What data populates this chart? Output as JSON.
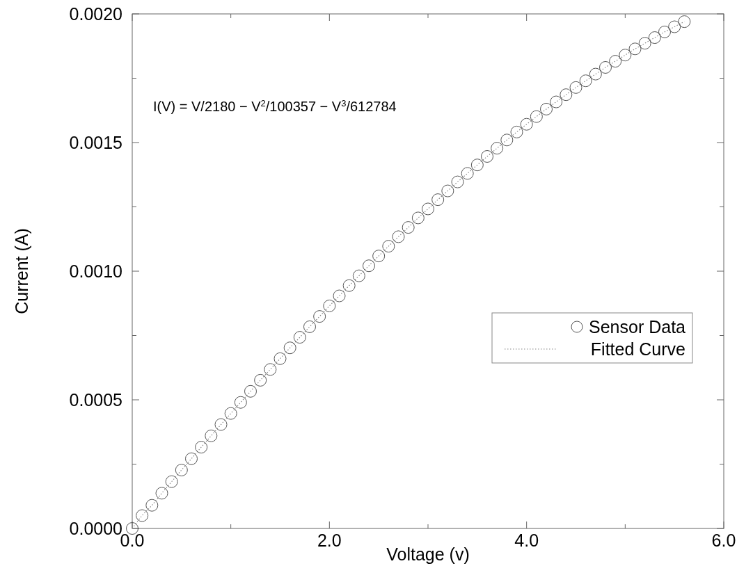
{
  "chart_data": {
    "type": "scatter",
    "xlabel": "Voltage (v)",
    "ylabel": "Current (A)",
    "annotations": [
      "I(V) = V/2180 − V$^{2}$/100357 − V$^{3}$/612784"
    ],
    "x": [
      0,
      0.1,
      0.2,
      0.3,
      0.4,
      0.5,
      0.6,
      0.7,
      0.8,
      0.9,
      1.0,
      1.1,
      1.2,
      1.3,
      1.4,
      1.5,
      1.6,
      1.7,
      1.8,
      1.9,
      2.0,
      2.1,
      2.2,
      2.3,
      2.4,
      2.5,
      2.6,
      2.7,
      2.8,
      2.9,
      3.0,
      3.1,
      3.2,
      3.3,
      3.4,
      3.5,
      3.6,
      3.7,
      3.8,
      3.9,
      4.0,
      4.1,
      4.2,
      4.3,
      4.4,
      4.5,
      4.6,
      4.7,
      4.8,
      4.9,
      5.0,
      5.1,
      5.2,
      5.3,
      5.4,
      5.5,
      5.6
    ],
    "series": [
      {
        "name": "Sensor Data",
        "marker": "circle",
        "color": "#555555",
        "values": [
          0,
          5e-05,
          9e-05,
          0.000137,
          0.000182,
          0.000227,
          0.000271,
          0.000316,
          0.00036,
          0.000404,
          0.000447,
          0.00049,
          0.000533,
          0.000576,
          0.000618,
          0.00066,
          0.000702,
          0.000743,
          0.000784,
          0.000824,
          0.000865,
          0.000904,
          0.000944,
          0.000982,
          0.001021,
          0.001059,
          0.001097,
          0.001134,
          0.00117,
          0.001207,
          0.001242,
          0.001278,
          0.001312,
          0.001347,
          0.00138,
          0.001413,
          0.001446,
          0.001478,
          0.00151,
          0.001541,
          0.001571,
          0.001601,
          0.00163,
          0.001658,
          0.001686,
          0.001714,
          0.00174,
          0.001766,
          0.001792,
          0.001816,
          0.00184,
          0.001864,
          0.001886,
          0.001908,
          0.00193,
          0.00195,
          0.00197
        ]
      },
      {
        "name": "Fitted Curve",
        "type": "line",
        "line_style": "dotted",
        "color": "#888888",
        "values": [
          0,
          5e-05,
          9e-05,
          0.000137,
          0.000182,
          0.000227,
          0.000271,
          0.000316,
          0.00036,
          0.000404,
          0.000447,
          0.00049,
          0.000533,
          0.000576,
          0.000618,
          0.00066,
          0.000702,
          0.000743,
          0.000784,
          0.000824,
          0.000865,
          0.000904,
          0.000944,
          0.000982,
          0.001021,
          0.001059,
          0.001097,
          0.001134,
          0.00117,
          0.001207,
          0.001242,
          0.001278,
          0.001312,
          0.001347,
          0.00138,
          0.001413,
          0.001446,
          0.001478,
          0.00151,
          0.001541,
          0.001571,
          0.001601,
          0.00163,
          0.001658,
          0.001686,
          0.001714,
          0.00174,
          0.001766,
          0.001792,
          0.001816,
          0.00184,
          0.001864,
          0.001886,
          0.001908,
          0.00193,
          0.00195,
          0.00197
        ]
      }
    ],
    "xlim": [
      0,
      6
    ],
    "xticks": [
      {
        "value": 0,
        "label": "0.0"
      },
      {
        "value": 1,
        "label": null
      },
      {
        "value": 2,
        "label": "2.0"
      },
      {
        "value": 3,
        "label": null
      },
      {
        "value": 4,
        "label": "4.0"
      },
      {
        "value": 5,
        "label": null
      },
      {
        "value": 6,
        "label": "6.0"
      }
    ],
    "ylim": [
      0,
      0.002
    ],
    "yticks": [
      {
        "value": 0,
        "label": "0.0000"
      },
      {
        "value": 0.00025,
        "label": null
      },
      {
        "value": 0.0005,
        "label": "0.0005"
      },
      {
        "value": 0.00075,
        "label": null
      },
      {
        "value": 0.001,
        "label": "0.0010"
      },
      {
        "value": 0.00125,
        "label": null
      },
      {
        "value": 0.0015,
        "label": "0.0015"
      },
      {
        "value": 0.00175,
        "label": null
      },
      {
        "value": 0.002,
        "label": "0.0020"
      }
    ],
    "grid": false,
    "legend": "right"
  }
}
